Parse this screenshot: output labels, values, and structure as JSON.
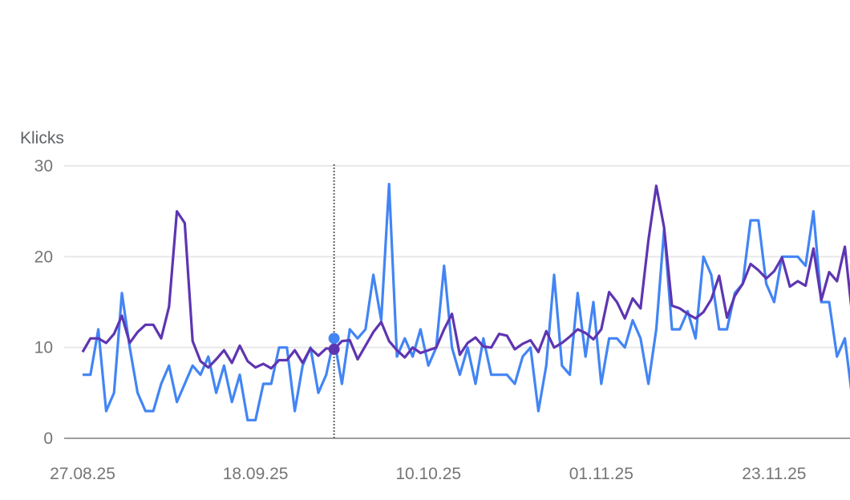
{
  "chart_data": {
    "type": "line",
    "ylabel": "Klicks",
    "ylim": [
      0,
      30
    ],
    "yticks": [
      "0",
      "10",
      "20",
      "30"
    ],
    "xticks": [
      "27.08.25",
      "18.09.25",
      "10.10.25",
      "01.11.25",
      "23.11.25"
    ],
    "x_start": "27.08.25",
    "x_step_days": 1,
    "grid": true,
    "hover_index": 32,
    "series": [
      {
        "color": "#4285f4",
        "values": [
          7,
          7,
          12,
          3,
          5,
          16,
          10,
          5,
          3,
          3,
          6,
          8,
          4,
          6,
          8,
          7,
          9,
          5,
          8,
          4,
          7,
          2,
          2,
          6,
          6,
          10,
          10,
          3,
          8,
          10,
          5,
          7,
          11,
          6,
          12,
          11,
          12,
          18,
          13,
          28,
          9,
          11,
          9,
          12,
          8,
          10,
          19,
          10,
          7,
          10,
          6,
          11,
          7,
          7,
          7,
          6,
          9,
          10,
          3,
          8,
          18,
          8,
          7,
          16,
          9,
          15,
          6,
          11,
          11,
          10,
          13,
          11,
          6,
          12,
          23,
          12,
          12,
          14,
          11,
          20,
          18,
          12,
          12,
          16,
          17,
          24,
          24,
          17,
          15,
          20,
          20,
          20,
          19,
          25,
          15,
          15,
          9,
          11,
          4
        ]
      },
      {
        "color": "#5e35b1",
        "values": [
          9.5,
          11,
          11,
          10.5,
          11.5,
          13.5,
          10.5,
          11.7,
          12.5,
          12.5,
          11,
          14.5,
          25,
          23.7,
          10.7,
          8.5,
          7.8,
          8.7,
          9.7,
          8.3,
          10.2,
          8.5,
          7.8,
          8.2,
          7.7,
          8.6,
          8.6,
          9.7,
          8.3,
          9.9,
          9.1,
          9.9,
          9.8,
          10.7,
          10.8,
          8.7,
          10.2,
          11.7,
          12.8,
          10.7,
          9.7,
          8.9,
          10,
          9.4,
          9.7,
          10,
          12,
          13.7,
          9.2,
          10.5,
          11.1,
          10.1,
          10,
          11.5,
          11.3,
          9.8,
          10.4,
          10.8,
          9.5,
          11.8,
          10,
          10.5,
          11.2,
          12,
          11.6,
          10.9,
          12,
          16.1,
          15,
          13.2,
          15.4,
          14.3,
          21.8,
          27.8,
          23.2,
          14.6,
          14.3,
          13.7,
          13.2,
          13.9,
          15.3,
          17.9,
          13.3,
          15.7,
          17,
          19.2,
          18.5,
          17.6,
          18.4,
          19.9,
          16.7,
          17.3,
          16.8,
          20.9,
          15.2,
          18.3,
          17.3,
          21.1,
          13
        ]
      }
    ]
  }
}
